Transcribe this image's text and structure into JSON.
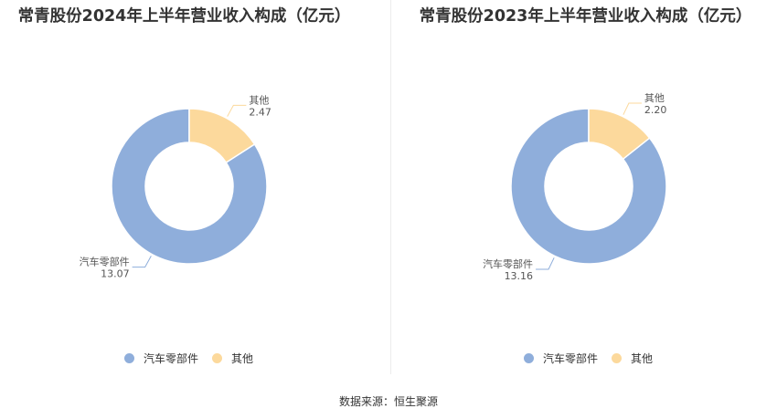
{
  "colors": {
    "auto_parts": "#8FAEDB",
    "other": "#FCD99C",
    "leader_line": "#b5b5b5",
    "label_text": "#555555"
  },
  "chart_data": [
    {
      "type": "pie",
      "variant": "donut",
      "title": "常青股份2024年上半年营业收入构成（亿元）",
      "categories": [
        "汽车零部件",
        "其他"
      ],
      "values": [
        13.07,
        2.47
      ],
      "value_labels": [
        "13.07",
        "2.47"
      ],
      "legend": [
        "汽车零部件",
        "其他"
      ],
      "legend_position": "bottom"
    },
    {
      "type": "pie",
      "variant": "donut",
      "title": "常青股份2023年上半年营业收入构成（亿元）",
      "categories": [
        "汽车零部件",
        "其他"
      ],
      "values": [
        13.16,
        2.2
      ],
      "value_labels": [
        "13.16",
        "2.20"
      ],
      "legend": [
        "汽车零部件",
        "其他"
      ],
      "legend_position": "bottom"
    }
  ],
  "footer": {
    "source": "数据来源：恒生聚源"
  }
}
